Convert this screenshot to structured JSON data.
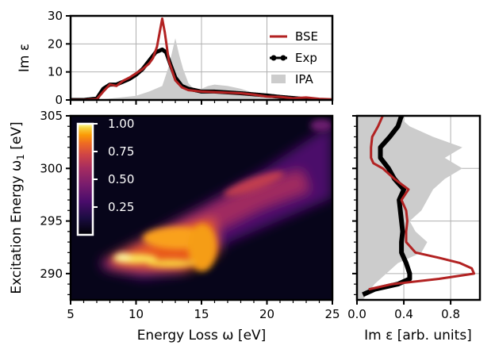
{
  "chart_data": [
    {
      "type": "line",
      "panel": "top",
      "ylabel": "Im ε",
      "xlim": [
        5,
        25
      ],
      "ylim": [
        0,
        30
      ],
      "xticks": [
        5,
        10,
        15,
        20,
        25
      ],
      "yticks": [
        "0",
        "10",
        "20",
        "30"
      ],
      "grid": true,
      "legend": {
        "placement": "top-right",
        "entries": [
          "BSE",
          "Exp",
          "IPA"
        ]
      },
      "series": [
        {
          "name": "BSE",
          "color": "#b22222",
          "x": [
            5,
            6,
            7,
            7.5,
            8,
            8.5,
            9,
            9.5,
            10,
            10.5,
            11,
            11.3,
            11.6,
            11.8,
            12,
            12.2,
            12.5,
            13,
            13.5,
            14,
            15,
            16,
            17,
            18,
            19,
            20,
            21,
            22,
            23,
            24,
            25
          ],
          "y": [
            0,
            0,
            0.3,
            3,
            5.5,
            5,
            6.8,
            8,
            9.5,
            11,
            13,
            15,
            19,
            24,
            29,
            24,
            14,
            7,
            4.5,
            3.5,
            3,
            2.8,
            2.6,
            2.4,
            1.9,
            1.2,
            1.1,
            0.6,
            0.9,
            0.4,
            0.2
          ]
        },
        {
          "name": "Exp",
          "color": "#000000",
          "x": [
            5,
            6,
            7,
            7.5,
            8,
            8.5,
            9,
            9.5,
            10,
            10.5,
            11,
            11.5,
            12,
            12.3,
            12.6,
            13,
            13.5,
            14,
            15,
            16,
            17,
            18,
            19,
            20,
            21,
            22,
            23,
            24
          ],
          "y": [
            0,
            0,
            0.5,
            4,
            5.5,
            5.5,
            6.5,
            7.5,
            9,
            11,
            14,
            17,
            18,
            17,
            13,
            8,
            5,
            4,
            3,
            3,
            2.7,
            2.4,
            2,
            1.6,
            1.1,
            0.7,
            0.3,
            0
          ]
        },
        {
          "name": "IPA",
          "color": "#cccccc",
          "x": [
            5,
            6,
            7,
            8,
            9,
            10,
            11,
            12,
            12.5,
            13,
            13.3,
            13.6,
            14,
            14.3,
            14.6,
            15,
            15.5,
            16,
            17,
            18,
            19,
            20,
            21,
            22,
            23,
            24,
            25
          ],
          "y": [
            0,
            0,
            0,
            0.5,
            1,
            1.5,
            3,
            5,
            12,
            22,
            16,
            11,
            6,
            4.5,
            3.5,
            4,
            5,
            5.5,
            5,
            4,
            2.5,
            2,
            1,
            0.5,
            0.3,
            0.1,
            0
          ]
        }
      ]
    },
    {
      "type": "heatmap",
      "panel": "main",
      "xlabel": "Energy Loss ω [eV]",
      "ylabel": "Excitation Energy ω₁ [eV]",
      "ylabel_main": "Excitation Energy ω",
      "ylabel_sub": "1",
      "ylabel_tail": " [eV]",
      "xlim": [
        5,
        25
      ],
      "ylim": [
        287.5,
        305
      ],
      "xticks": [
        "5",
        "10",
        "15",
        "20",
        "25"
      ],
      "yticks": [
        "290",
        "295",
        "300",
        "305"
      ],
      "colormap": "inferno",
      "colorbar": {
        "range": [
          0,
          1
        ],
        "ticks": [
          "0.25",
          "0.50",
          "0.75",
          "1.00"
        ],
        "tick_values": [
          0.25,
          0.5,
          0.75,
          1.0
        ]
      }
    },
    {
      "type": "line",
      "panel": "right",
      "xlabel": "Im ε [arb. units]",
      "xlim": [
        0,
        1.05
      ],
      "ylim": [
        287.5,
        305
      ],
      "xticks": [
        "0.0",
        "0.4",
        "0.8"
      ],
      "xtick_values": [
        0,
        0.4,
        0.8
      ],
      "grid": true,
      "series": [
        {
          "name": "BSE",
          "color": "#b22222",
          "y": [
            288.5,
            289.0,
            289.5,
            290.0,
            290.5,
            291.0,
            291.5,
            292.0,
            293.0,
            294.0,
            295.0,
            296.0,
            297.0,
            298.0,
            299.0,
            300.0,
            300.5,
            301.0,
            302.0,
            303.0,
            304.0,
            305.0
          ],
          "x": [
            0.1,
            0.3,
            0.7,
            1.0,
            0.98,
            0.88,
            0.7,
            0.5,
            0.42,
            0.42,
            0.43,
            0.42,
            0.38,
            0.44,
            0.32,
            0.22,
            0.14,
            0.12,
            0.12,
            0.13,
            0.18,
            0.22
          ]
        },
        {
          "name": "Exp",
          "color": "#000000",
          "y": [
            288.0,
            288.5,
            289.0,
            289.5,
            290.0,
            291.0,
            292.0,
            293.0,
            294.0,
            295.0,
            296.0,
            297.0,
            298.0,
            299.0,
            300.0,
            301.0,
            302.0,
            303.0,
            304.0,
            305.0
          ],
          "x": [
            0.05,
            0.15,
            0.35,
            0.45,
            0.45,
            0.42,
            0.38,
            0.38,
            0.39,
            0.38,
            0.37,
            0.36,
            0.4,
            0.32,
            0.27,
            0.2,
            0.2,
            0.28,
            0.35,
            0.38
          ]
        },
        {
          "name": "IPA",
          "color": "#cccccc",
          "y": [
            287.5,
            289.0,
            290.0,
            291.0,
            292.0,
            293.0,
            294.0,
            295.0,
            296.0,
            297.0,
            298.0,
            299.0,
            300.0,
            301.0,
            302.0,
            303.0,
            304.0,
            305.0
          ],
          "x": [
            0.05,
            0.15,
            0.25,
            0.35,
            0.55,
            0.6,
            0.5,
            0.45,
            0.55,
            0.6,
            0.65,
            0.75,
            0.9,
            0.75,
            0.9,
            0.65,
            0.45,
            0.35
          ]
        }
      ]
    }
  ]
}
